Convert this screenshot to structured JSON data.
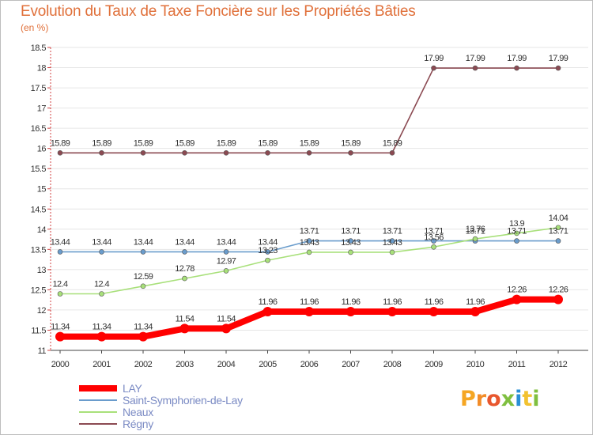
{
  "title": "Evolution du Taux de Taxe Foncière sur les Propriétés Bâties",
  "subtitle": "(en %)",
  "logo": {
    "text": "Proxiti",
    "colors": [
      "#f5a623",
      "#f28c28",
      "#e8572e",
      "#7fbf3f",
      "#2a8fd6",
      "#f2c230",
      "#7fbf3f"
    ]
  },
  "chart_data": {
    "type": "line",
    "x": [
      "2000",
      "2001",
      "2002",
      "2003",
      "2004",
      "2005",
      "2006",
      "2007",
      "2008",
      "2009",
      "2010",
      "2011",
      "2012"
    ],
    "ylim": [
      11,
      18.5
    ],
    "yticks": [
      "11",
      "11.5",
      "12",
      "12.5",
      "13",
      "13.5",
      "14",
      "14.5",
      "15",
      "15.5",
      "16",
      "16.5",
      "17",
      "17.5",
      "18",
      "18.5"
    ],
    "legend_position": "bottom-left",
    "series": [
      {
        "name": "LAY",
        "color": "#ff0000",
        "values": [
          11.34,
          11.34,
          11.34,
          11.54,
          11.54,
          11.96,
          11.96,
          11.96,
          11.96,
          11.96,
          11.96,
          12.26,
          12.26
        ],
        "labels": [
          "11.34",
          "11.34",
          "11.34",
          "11.54",
          "11.54",
          "11.96",
          "11.96",
          "11.96",
          "11.96",
          "11.96",
          "11.96",
          "12.26",
          "12.26"
        ]
      },
      {
        "name": "Saint-Symphorien-de-Lay",
        "color": "#6a9ccc",
        "values": [
          13.44,
          13.44,
          13.44,
          13.44,
          13.44,
          13.44,
          13.71,
          13.71,
          13.71,
          13.71,
          13.71,
          13.71,
          13.71
        ],
        "labels": [
          "13.44",
          "13.44",
          "13.44",
          "13.44",
          "13.44",
          "13.44",
          "13.71",
          "13.71",
          "13.71",
          "13.71",
          "13.71",
          "13.71",
          "13.71"
        ]
      },
      {
        "name": "Neaux",
        "color": "#a8e07a",
        "values": [
          12.4,
          12.4,
          12.59,
          12.78,
          12.97,
          13.23,
          13.43,
          13.43,
          13.43,
          13.56,
          13.76,
          13.9,
          14.04
        ],
        "labels": [
          "12.4",
          "12.4",
          "12.59",
          "12.78",
          "12.97",
          "13.23",
          "13.43",
          "13.43",
          "13.43",
          "13.56",
          "13.76",
          "13.9",
          "14.04"
        ]
      },
      {
        "name": "Régny",
        "color": "#8b4a52",
        "values": [
          15.89,
          15.89,
          15.89,
          15.89,
          15.89,
          15.89,
          15.89,
          15.89,
          15.89,
          17.99,
          17.99,
          17.99,
          17.99
        ],
        "labels": [
          "15.89",
          "15.89",
          "15.89",
          "15.89",
          "15.89",
          "15.89",
          "15.89",
          "15.89",
          "15.89",
          "17.99",
          "17.99",
          "17.99",
          "17.99"
        ]
      }
    ]
  }
}
